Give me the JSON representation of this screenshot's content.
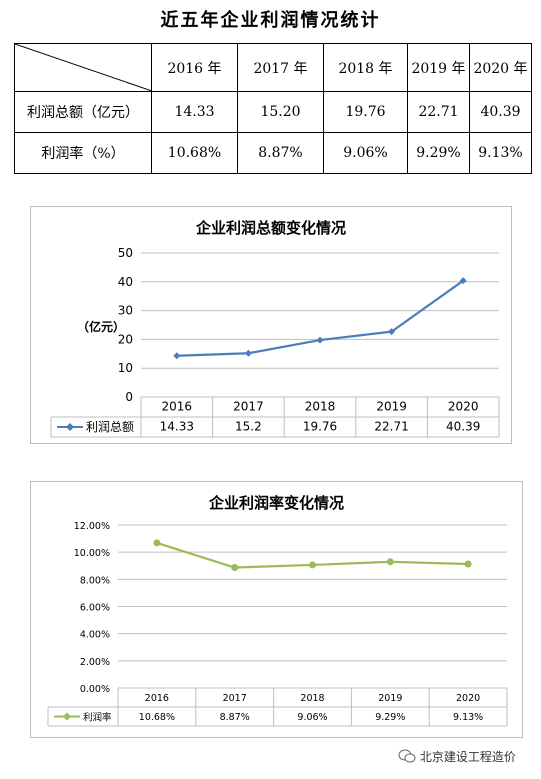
{
  "title": "近五年企业利润情况统计",
  "table": {
    "years": [
      "2016 年",
      "2017 年",
      "2018 年",
      "2019 年",
      "2020 年"
    ],
    "rows": [
      {
        "label": "利润总额（亿元）",
        "values": [
          "14.33",
          "15.20",
          "19.76",
          "22.71",
          "40.39"
        ]
      },
      {
        "label": "利润率（%）",
        "values": [
          "10.68%",
          "8.87%",
          "9.06%",
          "9.29%",
          "9.13%"
        ]
      }
    ]
  },
  "chart_data": [
    {
      "type": "line",
      "title": "企业利润总额变化情况",
      "ylabel": "（亿元）",
      "categories": [
        "2016",
        "2017",
        "2018",
        "2019",
        "2020"
      ],
      "series": [
        {
          "name": "利润总额",
          "values": [
            14.33,
            15.2,
            19.76,
            22.71,
            40.39
          ],
          "color": "#4a7ebb"
        }
      ],
      "value_labels": [
        "14.33",
        "15.2",
        "19.76",
        "22.71",
        "40.39"
      ],
      "yticks": [
        "0",
        "10",
        "20",
        "30",
        "40",
        "50"
      ],
      "ylim": [
        0,
        50
      ],
      "grid": true,
      "legend": "data-table"
    },
    {
      "type": "line",
      "title": "企业利润率变化情况",
      "categories": [
        "2016",
        "2017",
        "2018",
        "2019",
        "2020"
      ],
      "series": [
        {
          "name": "利润率",
          "values": [
            10.68,
            8.87,
            9.06,
            9.29,
            9.13
          ],
          "color": "#9bbb59"
        }
      ],
      "value_labels": [
        "10.68%",
        "8.87%",
        "9.06%",
        "9.29%",
        "9.13%"
      ],
      "yticks": [
        "0.00%",
        "2.00%",
        "4.00%",
        "6.00%",
        "8.00%",
        "10.00%",
        "12.00%"
      ],
      "ylim": [
        0,
        12
      ],
      "grid": true,
      "legend": "data-table"
    }
  ],
  "watermark": "北京建设工程造价",
  "icon": "wechat-icon"
}
